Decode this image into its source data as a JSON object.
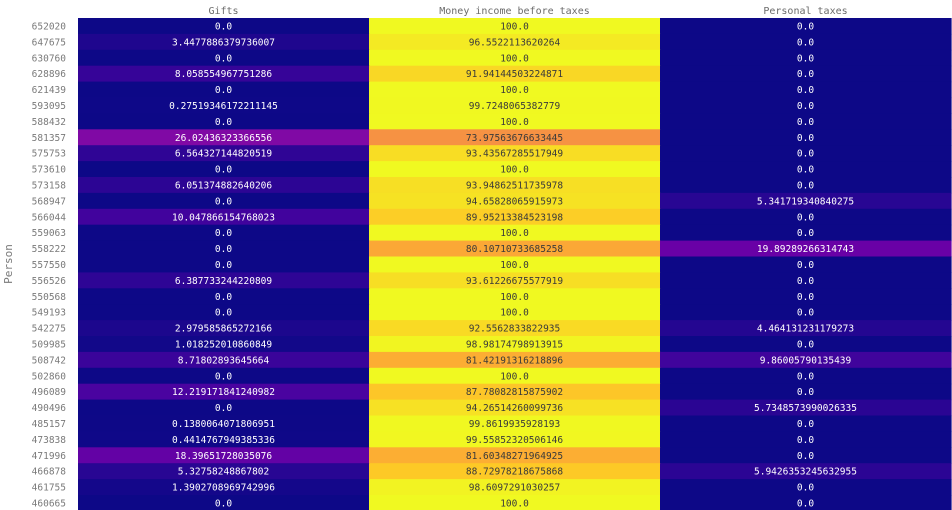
{
  "chart_data": {
    "type": "heatmap",
    "ylabel": "Person",
    "columns": [
      "Gifts",
      "Money income before taxes",
      "Personal taxes"
    ],
    "rows": [
      {
        "person": "652020",
        "values": [
          0.0,
          100.0,
          0.0
        ],
        "labels": [
          "0.0",
          "100.0",
          "0.0"
        ]
      },
      {
        "person": "647675",
        "values": [
          3.4477886379736007,
          96.5522113620264,
          0.0
        ],
        "labels": [
          "3.4477886379736007",
          "96.5522113620264",
          "0.0"
        ]
      },
      {
        "person": "630760",
        "values": [
          0.0,
          100.0,
          0.0
        ],
        "labels": [
          "0.0",
          "100.0",
          "0.0"
        ]
      },
      {
        "person": "628896",
        "values": [
          8.058554967751286,
          91.94144503224871,
          0.0
        ],
        "labels": [
          "8.058554967751286",
          "91.94144503224871",
          "0.0"
        ]
      },
      {
        "person": "621439",
        "values": [
          0.0,
          100.0,
          0.0
        ],
        "labels": [
          "0.0",
          "100.0",
          "0.0"
        ]
      },
      {
        "person": "593095",
        "values": [
          0.27519346172211145,
          99.7248065382779,
          0.0
        ],
        "labels": [
          "0.27519346172211145",
          "99.7248065382779",
          "0.0"
        ]
      },
      {
        "person": "588432",
        "values": [
          0.0,
          100.0,
          0.0
        ],
        "labels": [
          "0.0",
          "100.0",
          "0.0"
        ]
      },
      {
        "person": "581357",
        "values": [
          26.02436323366556,
          73.97563676633445,
          0.0
        ],
        "labels": [
          "26.02436323366556",
          "73.97563676633445",
          "0.0"
        ]
      },
      {
        "person": "575753",
        "values": [
          6.564327144820519,
          93.43567285517949,
          0.0
        ],
        "labels": [
          "6.564327144820519",
          "93.43567285517949",
          "0.0"
        ]
      },
      {
        "person": "573610",
        "values": [
          0.0,
          100.0,
          0.0
        ],
        "labels": [
          "0.0",
          "100.0",
          "0.0"
        ]
      },
      {
        "person": "573158",
        "values": [
          6.051374882640206,
          93.94862511735978,
          0.0
        ],
        "labels": [
          "6.051374882640206",
          "93.94862511735978",
          "0.0"
        ]
      },
      {
        "person": "568947",
        "values": [
          0.0,
          94.65828065915973,
          5.341719340840275
        ],
        "labels": [
          "0.0",
          "94.65828065915973",
          "5.341719340840275"
        ]
      },
      {
        "person": "566044",
        "values": [
          10.047866154768023,
          89.95213384523198,
          0.0
        ],
        "labels": [
          "10.047866154768023",
          "89.95213384523198",
          "0.0"
        ]
      },
      {
        "person": "559063",
        "values": [
          0.0,
          100.0,
          0.0
        ],
        "labels": [
          "0.0",
          "100.0",
          "0.0"
        ]
      },
      {
        "person": "558222",
        "values": [
          0.0,
          80.10710733685258,
          19.89289266314743
        ],
        "labels": [
          "0.0",
          "80.10710733685258",
          "19.89289266314743"
        ]
      },
      {
        "person": "557550",
        "values": [
          0.0,
          100.0,
          0.0
        ],
        "labels": [
          "0.0",
          "100.0",
          "0.0"
        ]
      },
      {
        "person": "556526",
        "values": [
          6.387733244220809,
          93.61226675577919,
          0.0
        ],
        "labels": [
          "6.387733244220809",
          "93.61226675577919",
          "0.0"
        ]
      },
      {
        "person": "550568",
        "values": [
          0.0,
          100.0,
          0.0
        ],
        "labels": [
          "0.0",
          "100.0",
          "0.0"
        ]
      },
      {
        "person": "549193",
        "values": [
          0.0,
          100.0,
          0.0
        ],
        "labels": [
          "0.0",
          "100.0",
          "0.0"
        ]
      },
      {
        "person": "542275",
        "values": [
          2.979585865272166,
          92.5562833822935,
          4.464131231179273
        ],
        "labels": [
          "2.979585865272166",
          "92.5562833822935",
          "4.464131231179273"
        ]
      },
      {
        "person": "509985",
        "values": [
          1.018252010860849,
          98.98174798913915,
          0.0
        ],
        "labels": [
          "1.018252010860849",
          "98.98174798913915",
          "0.0"
        ]
      },
      {
        "person": "508742",
        "values": [
          8.71802893645664,
          81.42191316218896,
          9.86005790135439
        ],
        "labels": [
          "8.71802893645664",
          "81.42191316218896",
          "9.86005790135439"
        ]
      },
      {
        "person": "502860",
        "values": [
          0.0,
          100.0,
          0.0
        ],
        "labels": [
          "0.0",
          "100.0",
          "0.0"
        ]
      },
      {
        "person": "496089",
        "values": [
          12.219171841240982,
          87.78082815875902,
          0.0
        ],
        "labels": [
          "12.219171841240982",
          "87.78082815875902",
          "0.0"
        ]
      },
      {
        "person": "490496",
        "values": [
          0.0,
          94.26514260099736,
          5.7348573990026335
        ],
        "labels": [
          "0.0",
          "94.26514260099736",
          "5.7348573990026335"
        ]
      },
      {
        "person": "485157",
        "values": [
          0.1380064071806951,
          99.8619935928193,
          0.0
        ],
        "labels": [
          "0.1380064071806951",
          "99.8619935928193",
          "0.0"
        ]
      },
      {
        "person": "473838",
        "values": [
          0.4414767949385336,
          99.55852320506146,
          0.0
        ],
        "labels": [
          "0.4414767949385336",
          "99.55852320506146",
          "0.0"
        ]
      },
      {
        "person": "471996",
        "values": [
          18.39651728035076,
          81.60348271964925,
          0.0
        ],
        "labels": [
          "18.39651728035076",
          "81.60348271964925",
          "0.0"
        ]
      },
      {
        "person": "466878",
        "values": [
          5.32758248867802,
          88.72978218675868,
          5.9426353245632955
        ],
        "labels": [
          "5.32758248867802",
          "88.72978218675868",
          "5.9426353245632955"
        ]
      },
      {
        "person": "461755",
        "values": [
          1.3902708969742996,
          98.6097291030257,
          0.0
        ],
        "labels": [
          "1.3902708969742996",
          "98.6097291030257",
          "0.0"
        ]
      },
      {
        "person": "460665",
        "values": [
          0.0,
          100.0,
          0.0
        ],
        "labels": [
          "0.0",
          "100.0",
          "0.0"
        ]
      }
    ],
    "vmin": 0,
    "vmax": 100,
    "colormap": "plasma",
    "colormap_stops": [
      "#0d0887",
      "#46039f",
      "#7201a8",
      "#9c179e",
      "#bd3786",
      "#d8576b",
      "#ed7953",
      "#fb9f3a",
      "#fdca26",
      "#f0f921"
    ]
  }
}
